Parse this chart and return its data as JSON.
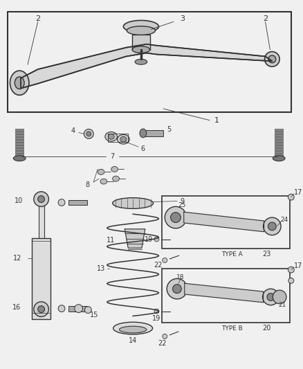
{
  "bg_color": "#f0f0f0",
  "line_color": "#333333",
  "fig_width": 4.38,
  "fig_height": 5.33,
  "dpi": 100
}
